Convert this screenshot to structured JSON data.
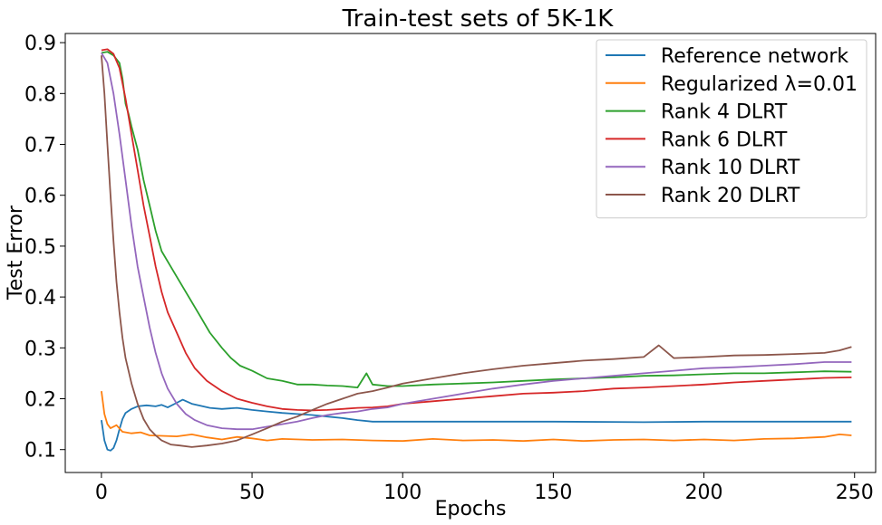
{
  "chart_data": {
    "type": "line",
    "title": "Train-test sets of 5K-1K",
    "xlabel": "Epochs",
    "ylabel": "Test Error",
    "xlim": [
      -12,
      257
    ],
    "ylim": [
      0.055,
      0.918
    ],
    "xticks": [
      0,
      50,
      100,
      150,
      200,
      250
    ],
    "yticks": [
      0.1,
      0.2,
      0.3,
      0.4,
      0.5,
      0.6,
      0.7,
      0.8,
      0.9
    ],
    "grid": false,
    "legend_position": "top-right",
    "series": [
      {
        "name": "Reference network",
        "color": "#1f77b4",
        "points": [
          [
            0,
            0.158
          ],
          [
            1,
            0.118
          ],
          [
            2,
            0.1
          ],
          [
            3,
            0.098
          ],
          [
            4,
            0.103
          ],
          [
            5,
            0.118
          ],
          [
            6,
            0.14
          ],
          [
            7,
            0.16
          ],
          [
            8,
            0.172
          ],
          [
            10,
            0.18
          ],
          [
            12,
            0.185
          ],
          [
            15,
            0.187
          ],
          [
            18,
            0.185
          ],
          [
            20,
            0.188
          ],
          [
            22,
            0.183
          ],
          [
            25,
            0.192
          ],
          [
            27,
            0.198
          ],
          [
            30,
            0.19
          ],
          [
            33,
            0.186
          ],
          [
            36,
            0.182
          ],
          [
            40,
            0.18
          ],
          [
            45,
            0.182
          ],
          [
            50,
            0.178
          ],
          [
            55,
            0.175
          ],
          [
            60,
            0.172
          ],
          [
            65,
            0.17
          ],
          [
            70,
            0.168
          ],
          [
            75,
            0.165
          ],
          [
            80,
            0.162
          ],
          [
            85,
            0.158
          ],
          [
            90,
            0.155
          ],
          [
            100,
            0.155
          ],
          [
            120,
            0.155
          ],
          [
            150,
            0.155
          ],
          [
            180,
            0.154
          ],
          [
            200,
            0.155
          ],
          [
            220,
            0.155
          ],
          [
            249,
            0.155
          ]
        ]
      },
      {
        "name": "Regularized λ=0.01",
        "color": "#ff7f0e",
        "points": [
          [
            0,
            0.215
          ],
          [
            1,
            0.17
          ],
          [
            2,
            0.15
          ],
          [
            3,
            0.142
          ],
          [
            5,
            0.148
          ],
          [
            7,
            0.135
          ],
          [
            10,
            0.132
          ],
          [
            13,
            0.134
          ],
          [
            16,
            0.128
          ],
          [
            20,
            0.127
          ],
          [
            25,
            0.126
          ],
          [
            30,
            0.13
          ],
          [
            35,
            0.124
          ],
          [
            40,
            0.12
          ],
          [
            45,
            0.125
          ],
          [
            50,
            0.122
          ],
          [
            55,
            0.118
          ],
          [
            60,
            0.121
          ],
          [
            70,
            0.119
          ],
          [
            80,
            0.12
          ],
          [
            90,
            0.118
          ],
          [
            100,
            0.117
          ],
          [
            110,
            0.121
          ],
          [
            120,
            0.118
          ],
          [
            130,
            0.119
          ],
          [
            140,
            0.117
          ],
          [
            150,
            0.12
          ],
          [
            160,
            0.117
          ],
          [
            170,
            0.119
          ],
          [
            180,
            0.12
          ],
          [
            190,
            0.118
          ],
          [
            200,
            0.12
          ],
          [
            210,
            0.118
          ],
          [
            220,
            0.121
          ],
          [
            230,
            0.122
          ],
          [
            240,
            0.125
          ],
          [
            245,
            0.13
          ],
          [
            249,
            0.128
          ]
        ]
      },
      {
        "name": "Rank 4 DLRT",
        "color": "#2ca02c",
        "points": [
          [
            0,
            0.88
          ],
          [
            2,
            0.882
          ],
          [
            4,
            0.875
          ],
          [
            6,
            0.86
          ],
          [
            7,
            0.83
          ],
          [
            8,
            0.78
          ],
          [
            9,
            0.76
          ],
          [
            10,
            0.735
          ],
          [
            12,
            0.69
          ],
          [
            14,
            0.63
          ],
          [
            16,
            0.58
          ],
          [
            18,
            0.53
          ],
          [
            20,
            0.49
          ],
          [
            23,
            0.46
          ],
          [
            26,
            0.43
          ],
          [
            30,
            0.39
          ],
          [
            33,
            0.36
          ],
          [
            36,
            0.33
          ],
          [
            40,
            0.3
          ],
          [
            43,
            0.28
          ],
          [
            46,
            0.265
          ],
          [
            50,
            0.255
          ],
          [
            55,
            0.24
          ],
          [
            60,
            0.235
          ],
          [
            65,
            0.228
          ],
          [
            70,
            0.228
          ],
          [
            75,
            0.226
          ],
          [
            80,
            0.225
          ],
          [
            85,
            0.222
          ],
          [
            88,
            0.25
          ],
          [
            90,
            0.228
          ],
          [
            95,
            0.225
          ],
          [
            100,
            0.225
          ],
          [
            110,
            0.228
          ],
          [
            120,
            0.23
          ],
          [
            130,
            0.232
          ],
          [
            140,
            0.235
          ],
          [
            150,
            0.238
          ],
          [
            160,
            0.24
          ],
          [
            170,
            0.242
          ],
          [
            180,
            0.245
          ],
          [
            190,
            0.246
          ],
          [
            200,
            0.248
          ],
          [
            210,
            0.25
          ],
          [
            220,
            0.25
          ],
          [
            230,
            0.252
          ],
          [
            240,
            0.254
          ],
          [
            249,
            0.253
          ]
        ]
      },
      {
        "name": "Rank 6 DLRT",
        "color": "#d62728",
        "points": [
          [
            0,
            0.885
          ],
          [
            2,
            0.887
          ],
          [
            4,
            0.878
          ],
          [
            6,
            0.85
          ],
          [
            8,
            0.79
          ],
          [
            10,
            0.72
          ],
          [
            12,
            0.65
          ],
          [
            14,
            0.58
          ],
          [
            16,
            0.52
          ],
          [
            18,
            0.46
          ],
          [
            20,
            0.41
          ],
          [
            22,
            0.37
          ],
          [
            25,
            0.33
          ],
          [
            28,
            0.29
          ],
          [
            31,
            0.26
          ],
          [
            35,
            0.235
          ],
          [
            40,
            0.215
          ],
          [
            45,
            0.2
          ],
          [
            50,
            0.192
          ],
          [
            55,
            0.185
          ],
          [
            60,
            0.18
          ],
          [
            65,
            0.178
          ],
          [
            70,
            0.177
          ],
          [
            75,
            0.178
          ],
          [
            80,
            0.18
          ],
          [
            85,
            0.182
          ],
          [
            90,
            0.183
          ],
          [
            95,
            0.185
          ],
          [
            100,
            0.19
          ],
          [
            110,
            0.195
          ],
          [
            120,
            0.2
          ],
          [
            130,
            0.205
          ],
          [
            140,
            0.21
          ],
          [
            150,
            0.212
          ],
          [
            160,
            0.215
          ],
          [
            170,
            0.22
          ],
          [
            180,
            0.222
          ],
          [
            190,
            0.225
          ],
          [
            200,
            0.228
          ],
          [
            210,
            0.232
          ],
          [
            220,
            0.235
          ],
          [
            230,
            0.238
          ],
          [
            240,
            0.241
          ],
          [
            249,
            0.242
          ]
        ]
      },
      {
        "name": "Rank 10 DLRT",
        "color": "#9467bd",
        "points": [
          [
            0,
            0.88
          ],
          [
            2,
            0.86
          ],
          [
            4,
            0.8
          ],
          [
            6,
            0.72
          ],
          [
            8,
            0.63
          ],
          [
            10,
            0.54
          ],
          [
            12,
            0.46
          ],
          [
            14,
            0.4
          ],
          [
            16,
            0.34
          ],
          [
            18,
            0.29
          ],
          [
            20,
            0.25
          ],
          [
            22,
            0.22
          ],
          [
            25,
            0.19
          ],
          [
            28,
            0.17
          ],
          [
            31,
            0.158
          ],
          [
            35,
            0.148
          ],
          [
            40,
            0.142
          ],
          [
            45,
            0.14
          ],
          [
            50,
            0.14
          ],
          [
            55,
            0.145
          ],
          [
            60,
            0.15
          ],
          [
            65,
            0.155
          ],
          [
            70,
            0.162
          ],
          [
            75,
            0.168
          ],
          [
            80,
            0.172
          ],
          [
            85,
            0.175
          ],
          [
            90,
            0.18
          ],
          [
            95,
            0.183
          ],
          [
            100,
            0.19
          ],
          [
            110,
            0.2
          ],
          [
            120,
            0.21
          ],
          [
            130,
            0.22
          ],
          [
            140,
            0.228
          ],
          [
            150,
            0.235
          ],
          [
            160,
            0.24
          ],
          [
            170,
            0.245
          ],
          [
            180,
            0.25
          ],
          [
            190,
            0.255
          ],
          [
            200,
            0.26
          ],
          [
            210,
            0.262
          ],
          [
            220,
            0.265
          ],
          [
            230,
            0.268
          ],
          [
            240,
            0.272
          ],
          [
            249,
            0.272
          ]
        ]
      },
      {
        "name": "Rank 20 DLRT",
        "color": "#8c564b",
        "points": [
          [
            0,
            0.875
          ],
          [
            1,
            0.8
          ],
          [
            2,
            0.7
          ],
          [
            3,
            0.6
          ],
          [
            4,
            0.51
          ],
          [
            5,
            0.43
          ],
          [
            6,
            0.37
          ],
          [
            7,
            0.32
          ],
          [
            8,
            0.28
          ],
          [
            10,
            0.23
          ],
          [
            12,
            0.19
          ],
          [
            14,
            0.16
          ],
          [
            16,
            0.14
          ],
          [
            18,
            0.128
          ],
          [
            20,
            0.118
          ],
          [
            23,
            0.11
          ],
          [
            26,
            0.108
          ],
          [
            30,
            0.105
          ],
          [
            35,
            0.108
          ],
          [
            40,
            0.112
          ],
          [
            45,
            0.118
          ],
          [
            50,
            0.13
          ],
          [
            55,
            0.142
          ],
          [
            60,
            0.155
          ],
          [
            65,
            0.165
          ],
          [
            70,
            0.178
          ],
          [
            75,
            0.19
          ],
          [
            80,
            0.2
          ],
          [
            85,
            0.21
          ],
          [
            90,
            0.215
          ],
          [
            95,
            0.222
          ],
          [
            100,
            0.23
          ],
          [
            110,
            0.24
          ],
          [
            120,
            0.25
          ],
          [
            130,
            0.258
          ],
          [
            140,
            0.265
          ],
          [
            150,
            0.27
          ],
          [
            160,
            0.275
          ],
          [
            170,
            0.278
          ],
          [
            180,
            0.282
          ],
          [
            185,
            0.305
          ],
          [
            190,
            0.28
          ],
          [
            200,
            0.282
          ],
          [
            210,
            0.285
          ],
          [
            220,
            0.286
          ],
          [
            230,
            0.288
          ],
          [
            240,
            0.29
          ],
          [
            245,
            0.295
          ],
          [
            249,
            0.302
          ]
        ]
      }
    ]
  }
}
